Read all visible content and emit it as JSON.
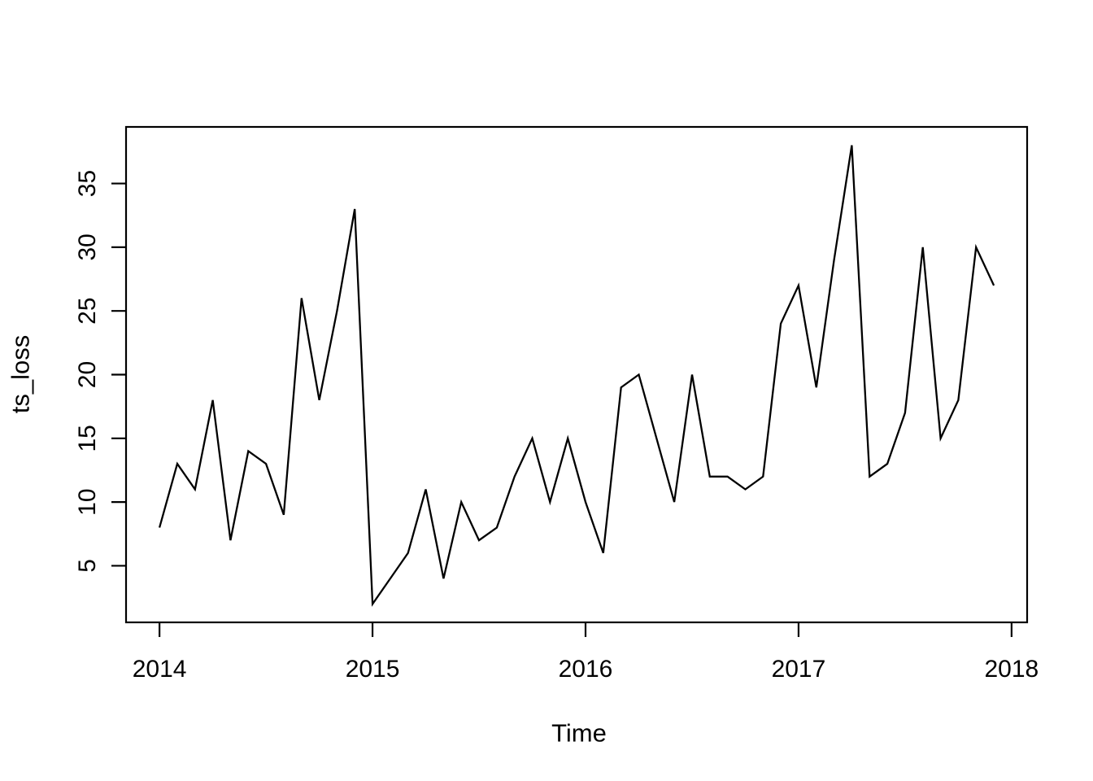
{
  "figure": {
    "background_color": "#ffffff",
    "line_color": "#000000",
    "axis_color": "#000000"
  },
  "chart_data": {
    "type": "line",
    "title": "",
    "xlabel": "Time",
    "ylabel": "ts_loss",
    "series_name": "ts_loss",
    "x_start": 2014,
    "frequency": 12,
    "x_ticks": [
      2014,
      2015,
      2016,
      2017,
      2018
    ],
    "y_ticks": [
      5,
      10,
      15,
      20,
      25,
      30,
      35
    ],
    "xlim": [
      2013.843,
      2018.073
    ],
    "ylim": [
      0.56,
      39.44
    ],
    "grid": "off",
    "legend": "none",
    "values": [
      8,
      13,
      11,
      18,
      7,
      14,
      13,
      9,
      26,
      18,
      25,
      33,
      2,
      4,
      6,
      11,
      4,
      10,
      7,
      8,
      12,
      15,
      10,
      15,
      10,
      6,
      19,
      20,
      15,
      10,
      20,
      12,
      12,
      11,
      12,
      24,
      27,
      19,
      29,
      38,
      12,
      13,
      17,
      30,
      15,
      18,
      30,
      27
    ]
  }
}
